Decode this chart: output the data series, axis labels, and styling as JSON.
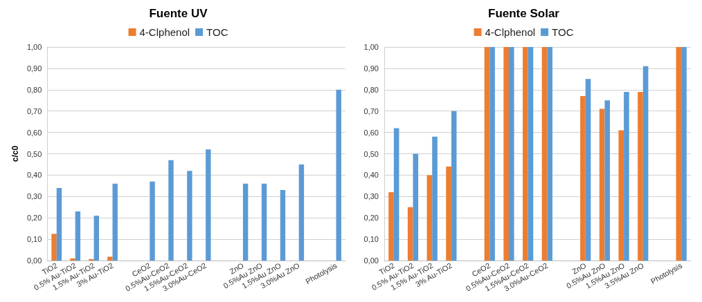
{
  "chart_data": [
    {
      "type": "bar",
      "title": "Fuente UV",
      "ylabel": "c/c0",
      "legend": "top",
      "grid": "y",
      "categories": [
        "TiO2",
        "0.5% Au-TiO2",
        "1.5% Au-TiO2",
        "3% Au-TiO2",
        null,
        "CeO2",
        "0.5%Au-CeO2",
        "1.5%Au-CeO2",
        "3.0%Au-CeO2",
        null,
        "ZnO",
        "0.5%Au ZnO",
        "1.5%Au ZnO",
        "3.0%Au ZnO",
        null,
        "Photolysis"
      ],
      "series": [
        {
          "name": "4-Clphenol",
          "color": "#ed7d31",
          "values": [
            0.125,
            0.01,
            0.007,
            0.018,
            null,
            0,
            0,
            0,
            0,
            null,
            0,
            0,
            0,
            0,
            null,
            0
          ]
        },
        {
          "name": "TOC",
          "color": "#5b9bd5",
          "values": [
            0.34,
            0.23,
            0.21,
            0.36,
            null,
            0.37,
            0.47,
            0.42,
            0.52,
            null,
            0.36,
            0.36,
            0.33,
            0.45,
            null,
            0.8
          ]
        }
      ],
      "ylim": [
        0,
        1
      ],
      "yticks": [
        {
          "value": 0,
          "label": "0,00"
        },
        {
          "value": 0.1,
          "label": "0,10"
        },
        {
          "value": 0.2,
          "label": "0,20"
        },
        {
          "value": 0.3,
          "label": "0,30"
        },
        {
          "value": 0.4,
          "label": "0,40"
        },
        {
          "value": 0.5,
          "label": "0,50"
        },
        {
          "value": 0.6,
          "label": "0,60"
        },
        {
          "value": 0.7,
          "label": "0,70"
        },
        {
          "value": 0.8,
          "label": "0,80"
        },
        {
          "value": 0.9,
          "label": "0,90"
        },
        {
          "value": 1,
          "label": "1,00"
        }
      ]
    },
    {
      "type": "bar",
      "title": "Fuente Solar",
      "legend": "top",
      "grid": "y",
      "categories": [
        "TiO2",
        "0.5% Au-TiO2",
        "1.5% Au-TiO2",
        "3% Au-TiO2",
        null,
        "CeO2",
        "0.5%Au-CeO2",
        "1.5%Au-CeO2",
        "3.0%Au-CeO2",
        null,
        "ZnO",
        "0.5%Au ZnO",
        "1.5%Au ZnO",
        "3.5%Au ZnO",
        null,
        "Photolysis"
      ],
      "series": [
        {
          "name": "4-Clphenol",
          "color": "#ed7d31",
          "values": [
            0.32,
            0.25,
            0.4,
            0.44,
            null,
            1,
            1,
            1,
            1,
            null,
            0.77,
            0.71,
            0.61,
            0.79,
            null,
            1
          ]
        },
        {
          "name": "TOC",
          "color": "#5b9bd5",
          "values": [
            0.62,
            0.5,
            0.58,
            0.7,
            null,
            1,
            1,
            1,
            1,
            null,
            0.85,
            0.75,
            0.79,
            0.91,
            null,
            1
          ]
        }
      ],
      "ylim": [
        0,
        1
      ],
      "yticks": [
        {
          "value": 0,
          "label": "0,00"
        },
        {
          "value": 0.1,
          "label": "0,10"
        },
        {
          "value": 0.2,
          "label": "0,20"
        },
        {
          "value": 0.3,
          "label": "0,30"
        },
        {
          "value": 0.4,
          "label": "0,40"
        },
        {
          "value": 0.5,
          "label": "0,50"
        },
        {
          "value": 0.6,
          "label": "0,60"
        },
        {
          "value": 0.7,
          "label": "0,70"
        },
        {
          "value": 0.8,
          "label": "0,80"
        },
        {
          "value": 0.9,
          "label": "0,90"
        },
        {
          "value": 1,
          "label": "1,00"
        }
      ]
    }
  ]
}
